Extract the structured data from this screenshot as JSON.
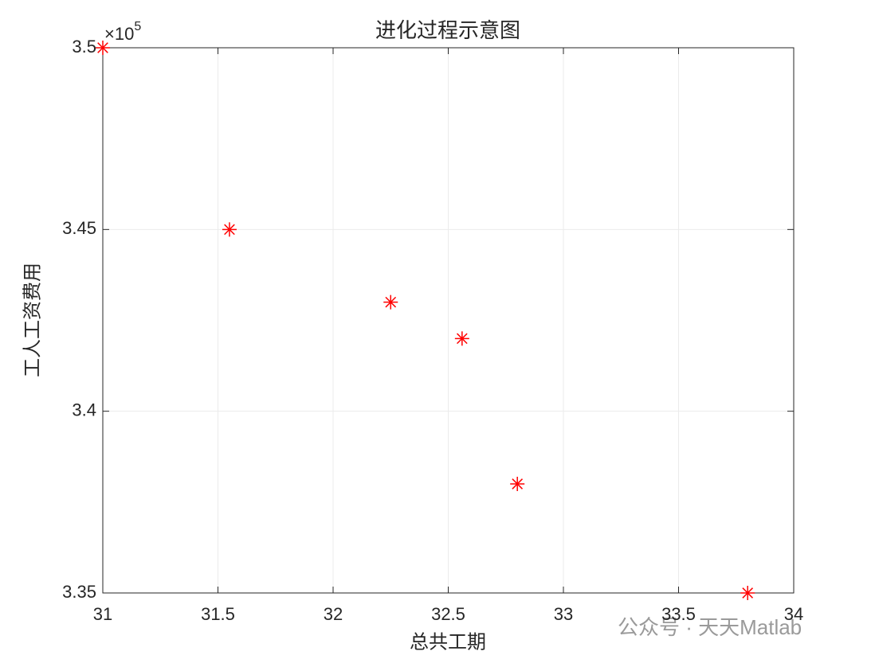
{
  "chart_data": {
    "type": "scatter",
    "title": "进化过程示意图",
    "xlabel": "总共工期",
    "ylabel": "工人工资费用",
    "y_multiplier": {
      "base": "×10",
      "exponent": "5"
    },
    "watermark": "公众号 · 天天Matlab",
    "x": [
      31,
      31.55,
      32.25,
      32.56,
      32.8,
      33.8
    ],
    "values": [
      350000,
      345000,
      343000,
      342000,
      338000,
      335000
    ],
    "color": "#ff0000",
    "marker": "asterisk",
    "xlim": [
      31,
      34
    ],
    "xticks": [
      31,
      31.5,
      32,
      32.5,
      33,
      33.5,
      34
    ],
    "ylim": [
      335000,
      350000
    ],
    "yticks": [
      {
        "value": 335000,
        "label": "3.35"
      },
      {
        "value": 340000,
        "label": "3.4"
      },
      {
        "value": 345000,
        "label": "3.45"
      },
      {
        "value": 350000,
        "label": "3.5"
      }
    ],
    "grid": true
  }
}
